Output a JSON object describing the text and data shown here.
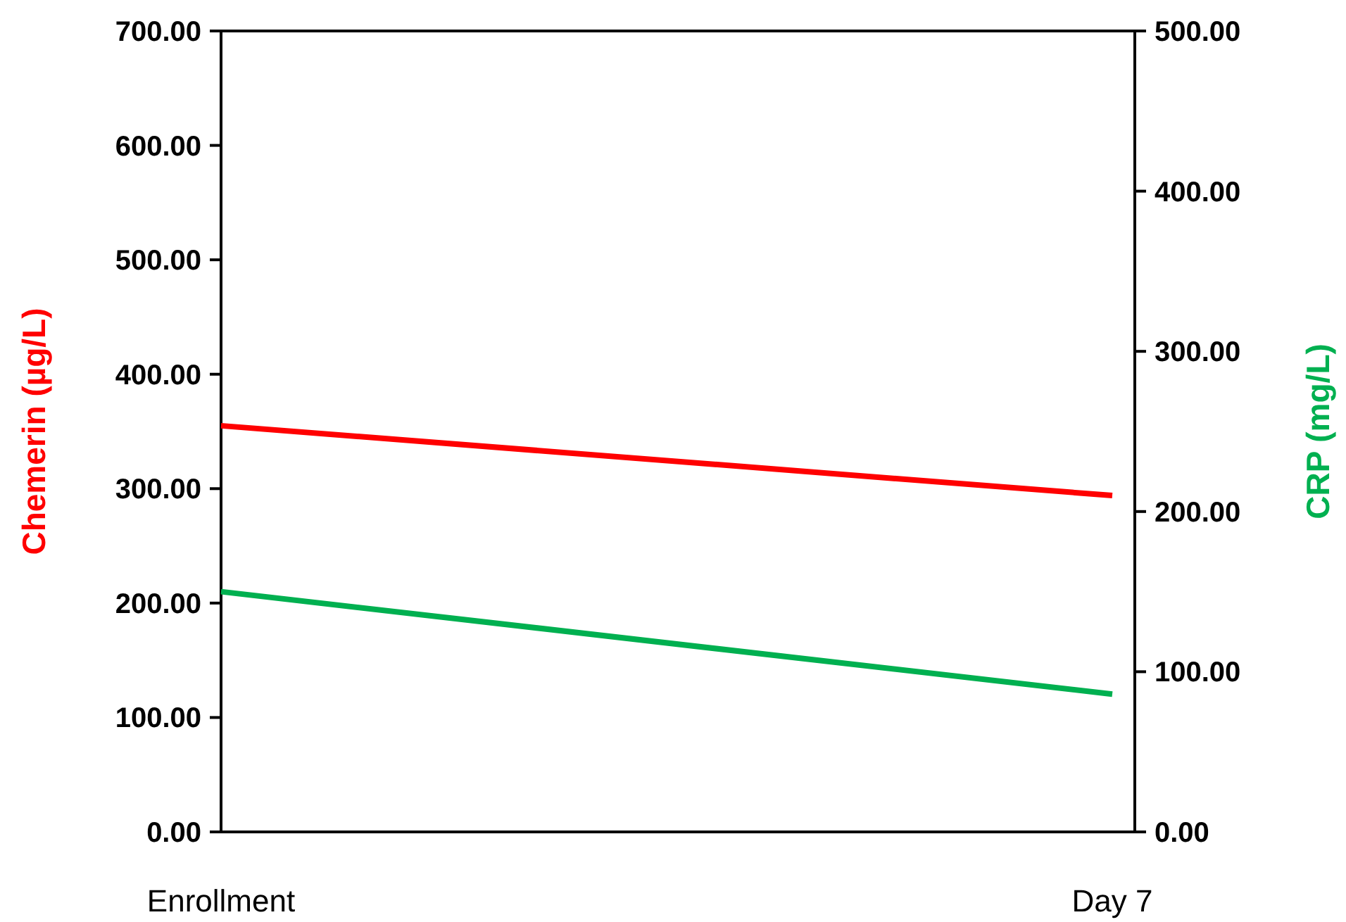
{
  "chart_data": {
    "type": "line",
    "categories": [
      "Enrollment",
      "Day 7"
    ],
    "ylabel": "Chemerin (µg/L)",
    "y2label": "CRP (mg/L)",
    "series": [
      {
        "color": "#ff0000",
        "values": [
          355,
          294
        ]
      },
      {
        "color": "#00b050",
        "values": [
          150,
          86
        ],
        "axis": "y2"
      }
    ],
    "ylim": [
      0,
      700
    ],
    "yticks": [
      {
        "value": 0,
        "label": "0.00"
      },
      {
        "value": 100,
        "label": "100.00"
      },
      {
        "value": 200,
        "label": "200.00"
      },
      {
        "value": 300,
        "label": "300.00"
      },
      {
        "value": 400,
        "label": "400.00"
      },
      {
        "value": 500,
        "label": "500.00"
      },
      {
        "value": 600,
        "label": "600.00"
      },
      {
        "value": 700,
        "label": "700.00"
      }
    ],
    "y2lim": [
      0,
      500
    ],
    "y2ticks": [
      {
        "value": 0,
        "label": "0.00"
      },
      {
        "value": 100,
        "label": "100.00"
      },
      {
        "value": 200,
        "label": "200.00"
      },
      {
        "value": 300,
        "label": "300.00"
      },
      {
        "value": 400,
        "label": "400.00"
      },
      {
        "value": 500,
        "label": "500.00"
      }
    ],
    "grid": false,
    "legend": false,
    "marker": "none",
    "line_style": "solid"
  }
}
